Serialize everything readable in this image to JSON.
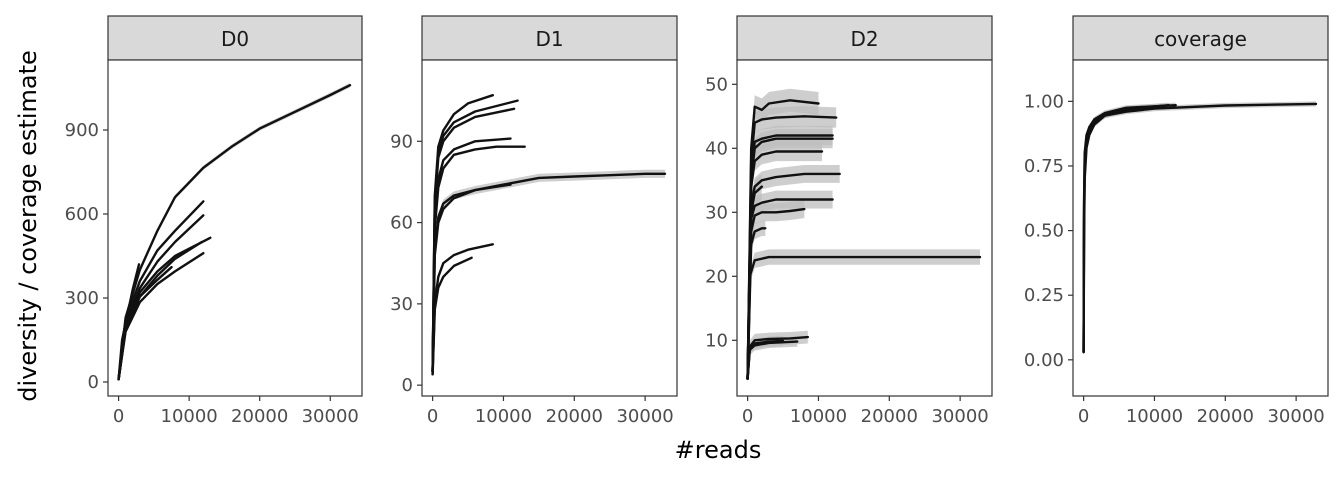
{
  "ylabel": "diversity / coverage estimate",
  "xlabel": "#reads",
  "chart_data": [
    {
      "type": "line",
      "title": "D0",
      "xlim": [
        -1500,
        34500
      ],
      "ylim": [
        -50,
        1150
      ],
      "x_ticks": [
        0,
        10000,
        20000,
        30000
      ],
      "x_tick_labels": [
        "0",
        "10000",
        "20000",
        "30000"
      ],
      "y_ticks": [
        0,
        300,
        600,
        900
      ],
      "y_tick_labels": [
        "0",
        "300",
        "600",
        "900"
      ],
      "series": [
        {
          "x": [
            0,
            500,
            1000,
            2000,
            2900
          ],
          "values": [
            10,
            150,
            210,
            330,
            420
          ],
          "ci": 0
        },
        {
          "x": [
            0,
            1000,
            3000,
            5500,
            8000,
            12000
          ],
          "values": [
            10,
            220,
            360,
            470,
            540,
            645
          ],
          "ci": 0
        },
        {
          "x": [
            0,
            1000,
            3000,
            5500,
            8000,
            12000
          ],
          "values": [
            10,
            205,
            335,
            430,
            500,
            595
          ],
          "ci": 0
        },
        {
          "x": [
            0,
            1000,
            3000,
            5500,
            8000,
            13000
          ],
          "values": [
            10,
            195,
            320,
            395,
            450,
            515
          ],
          "ci": 0
        },
        {
          "x": [
            0,
            1000,
            3000,
            5500,
            8000,
            11800
          ],
          "values": [
            10,
            190,
            305,
            380,
            440,
            500
          ],
          "ci": 0
        },
        {
          "x": [
            0,
            1000,
            3000,
            5500,
            8000,
            12000
          ],
          "values": [
            10,
            180,
            285,
            350,
            395,
            460
          ],
          "ci": 0
        },
        {
          "x": [
            0,
            1000,
            3000,
            5500,
            7500
          ],
          "values": [
            10,
            195,
            305,
            365,
            410
          ],
          "ci": 0
        },
        {
          "x": [
            0,
            1000,
            3000,
            5500,
            8000,
            12000,
            16000,
            20000,
            25000,
            30000,
            32800
          ],
          "values": [
            10,
            230,
            400,
            540,
            660,
            765,
            840,
            905,
            965,
            1025,
            1060
          ],
          "ci": 8
        }
      ]
    },
    {
      "type": "line",
      "title": "D1",
      "xlim": [
        -1500,
        34500
      ],
      "ylim": [
        -4,
        120
      ],
      "x_ticks": [
        0,
        10000,
        20000,
        30000
      ],
      "x_tick_labels": [
        "0",
        "10000",
        "20000",
        "30000"
      ],
      "y_ticks": [
        0,
        30,
        60,
        90
      ],
      "y_tick_labels": [
        "0",
        "30",
        "60",
        "90"
      ],
      "series": [
        {
          "x": [
            0,
            300,
            800,
            1500,
            3000,
            5000,
            8500
          ],
          "values": [
            5,
            70,
            88,
            94,
            100,
            104,
            107
          ],
          "ci": 0
        },
        {
          "x": [
            0,
            300,
            800,
            1500,
            3000,
            6000,
            12000
          ],
          "values": [
            5,
            68,
            86,
            92,
            97,
            101,
            105
          ],
          "ci": 0
        },
        {
          "x": [
            0,
            300,
            800,
            1500,
            3000,
            6000,
            11500
          ],
          "values": [
            5,
            66,
            84,
            90,
            95,
            99,
            102
          ],
          "ci": 0
        },
        {
          "x": [
            0,
            300,
            800,
            1500,
            3000,
            6000,
            11000
          ],
          "values": [
            5,
            60,
            76,
            83,
            87,
            90,
            91
          ],
          "ci": 0
        },
        {
          "x": [
            0,
            300,
            800,
            1500,
            3000,
            6000,
            9000,
            13000
          ],
          "values": [
            5,
            58,
            73,
            80,
            85,
            87,
            88,
            88
          ],
          "ci": 0
        },
        {
          "x": [
            0,
            300,
            800,
            1500,
            3000,
            6000,
            10000,
            15000,
            20000,
            25000,
            30000,
            32800
          ],
          "values": [
            5,
            50,
            62,
            67,
            70,
            72,
            74,
            76.5,
            77,
            77.5,
            78,
            78
          ],
          "ci": 1.5
        },
        {
          "x": [
            0,
            300,
            800,
            1500,
            3000,
            6000,
            11000
          ],
          "values": [
            5,
            48,
            60,
            65,
            69,
            72,
            74
          ],
          "ci": 0
        },
        {
          "x": [
            0,
            300,
            800,
            1500,
            3000,
            5000,
            8500
          ],
          "values": [
            4,
            30,
            40,
            45,
            48,
            50,
            52
          ],
          "ci": 0
        },
        {
          "x": [
            0,
            300,
            800,
            1500,
            3000,
            5500
          ],
          "values": [
            4,
            28,
            36,
            40,
            44,
            47
          ],
          "ci": 0
        }
      ]
    },
    {
      "type": "line",
      "title": "D2",
      "xlim": [
        -1500,
        34500
      ],
      "ylim": [
        1.3,
        53.8
      ],
      "x_ticks": [
        0,
        10000,
        20000,
        30000
      ],
      "x_tick_labels": [
        "0",
        "10000",
        "20000",
        "30000"
      ],
      "y_ticks": [
        10,
        20,
        30,
        40,
        50
      ],
      "y_tick_labels": [
        "10",
        "20",
        "30",
        "40",
        "50"
      ],
      "series": [
        {
          "x": [
            0,
            500,
            1000,
            2000,
            3000,
            6000,
            10000
          ],
          "values": [
            4,
            40,
            46.5,
            46,
            47,
            47.5,
            47
          ],
          "ci": 1.8
        },
        {
          "x": [
            0,
            500,
            1000,
            2000,
            4000,
            8000,
            12500
          ],
          "values": [
            4,
            38,
            44,
            44.5,
            44.8,
            45,
            44.8
          ],
          "ci": 1.6
        },
        {
          "x": [
            0,
            500,
            1000,
            2000,
            4000,
            8000,
            12000
          ],
          "values": [
            4,
            36,
            41,
            41.5,
            42,
            42,
            42
          ],
          "ci": 1.5
        },
        {
          "x": [
            0,
            500,
            1000,
            2000,
            4000,
            8000,
            12000
          ],
          "values": [
            4,
            35,
            40,
            41,
            41.5,
            41.5,
            41.5
          ],
          "ci": 1.5
        },
        {
          "x": [
            0,
            500,
            1000,
            2000,
            4000,
            7000,
            10500
          ],
          "values": [
            4,
            34,
            38,
            39,
            39.5,
            39.5,
            39.5
          ],
          "ci": 1.5
        },
        {
          "x": [
            0,
            500,
            1000,
            2000,
            4000,
            8000,
            13000
          ],
          "values": [
            4,
            31,
            34,
            35,
            35.5,
            36,
            36
          ],
          "ci": 1.4
        },
        {
          "x": [
            0,
            500,
            1000,
            2000,
            4000,
            8000,
            12000
          ],
          "values": [
            4,
            29,
            31,
            31.5,
            32,
            32,
            32
          ],
          "ci": 1.4
        },
        {
          "x": [
            0,
            500,
            1000,
            2000,
            4000,
            6000,
            8000
          ],
          "values": [
            4,
            27,
            29.5,
            30,
            30,
            30.2,
            30.5
          ],
          "ci": 1.4
        },
        {
          "x": [
            0,
            500,
            1000,
            2000
          ],
          "values": [
            4,
            30,
            33,
            34
          ],
          "ci": 2
        },
        {
          "x": [
            0,
            500,
            1000,
            2000,
            2500
          ],
          "values": [
            4,
            25,
            27,
            27.5,
            27.5
          ],
          "ci": 1.2
        },
        {
          "x": [
            0,
            300,
            1000,
            3000,
            6000,
            10000,
            15000,
            20000,
            25000,
            30000,
            32800
          ],
          "values": [
            4,
            20,
            22.5,
            23,
            23,
            23,
            23,
            23,
            23,
            23,
            23
          ],
          "ci": 1.2
        },
        {
          "x": [
            0,
            300,
            1000,
            3000,
            6000,
            8500
          ],
          "values": [
            4,
            9,
            10,
            10.2,
            10.3,
            10.5
          ],
          "ci": 1
        },
        {
          "x": [
            0,
            300,
            1000,
            3000,
            5000
          ],
          "values": [
            4,
            8.8,
            9.5,
            9.8,
            9.9
          ],
          "ci": 0.8
        },
        {
          "x": [
            0,
            300,
            1000,
            3000,
            7000
          ],
          "values": [
            4,
            8.5,
            9.2,
            9.6,
            9.8
          ],
          "ci": 0.8
        }
      ]
    },
    {
      "type": "line",
      "title": "coverage",
      "xlim": [
        -1500,
        34500
      ],
      "ylim": [
        -0.14,
        1.16
      ],
      "x_ticks": [
        0,
        10000,
        20000,
        30000
      ],
      "x_tick_labels": [
        "0",
        "10000",
        "20000",
        "30000"
      ],
      "y_ticks": [
        0,
        0.25,
        0.5,
        0.75,
        1.0
      ],
      "y_tick_labels": [
        "0.00",
        "0.25",
        "0.50",
        "0.75",
        "1.00"
      ],
      "series": [
        {
          "x": [
            0,
            50,
            150,
            400,
            800,
            1500,
            3000,
            6000,
            13000
          ],
          "values": [
            0.03,
            0.55,
            0.78,
            0.86,
            0.9,
            0.93,
            0.955,
            0.975,
            0.985
          ],
          "ci": 0.01
        },
        {
          "x": [
            0,
            50,
            150,
            400,
            800,
            1500,
            3000,
            6000,
            12000
          ],
          "values": [
            0.03,
            0.5,
            0.74,
            0.84,
            0.88,
            0.92,
            0.95,
            0.97,
            0.985
          ],
          "ci": 0.01
        },
        {
          "x": [
            0,
            50,
            150,
            400,
            800,
            1500,
            3000,
            6000,
            11000
          ],
          "values": [
            0.03,
            0.45,
            0.7,
            0.82,
            0.87,
            0.91,
            0.945,
            0.968,
            0.982
          ],
          "ci": 0.01
        },
        {
          "x": [
            0,
            50,
            150,
            400,
            800,
            1500,
            3000,
            6000,
            10000,
            20000,
            32800
          ],
          "values": [
            0.03,
            0.6,
            0.8,
            0.87,
            0.9,
            0.925,
            0.945,
            0.96,
            0.972,
            0.984,
            0.99
          ],
          "ci": 0.01
        }
      ]
    }
  ]
}
